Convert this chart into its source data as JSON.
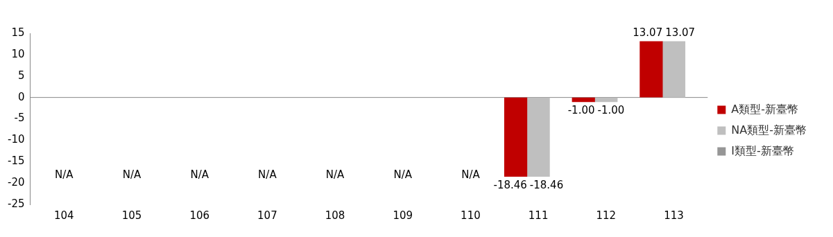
{
  "chart_data": {
    "type": "bar",
    "categories": [
      "104",
      "105",
      "106",
      "107",
      "108",
      "109",
      "110",
      "111",
      "112",
      "113"
    ],
    "series": [
      {
        "name": "A類型-新臺幣",
        "color": "#c00000",
        "values": [
          null,
          null,
          null,
          null,
          null,
          null,
          null,
          -18.46,
          -1.0,
          13.07
        ],
        "value_labels": [
          "N/A",
          "N/A",
          "N/A",
          "N/A",
          "N/A",
          "N/A",
          "N/A",
          "-18.46",
          "-1.00",
          "13.07"
        ]
      },
      {
        "name": "NA類型-新臺幣",
        "color": "#bfbfbf",
        "values": [
          null,
          null,
          null,
          null,
          null,
          null,
          null,
          -18.46,
          -1.0,
          13.07
        ],
        "value_labels": [
          null,
          null,
          null,
          null,
          null,
          null,
          null,
          "-18.46",
          "-1.00",
          "13.07"
        ]
      },
      {
        "name": "I類型-新臺幣",
        "color": "#969696",
        "values": [
          null,
          null,
          null,
          null,
          null,
          null,
          null,
          null,
          null,
          null
        ]
      }
    ],
    "ylim": [
      -25,
      15
    ],
    "yticks": [
      -25,
      -20,
      -15,
      -10,
      -5,
      0,
      5,
      10,
      15
    ],
    "legend": "right"
  }
}
